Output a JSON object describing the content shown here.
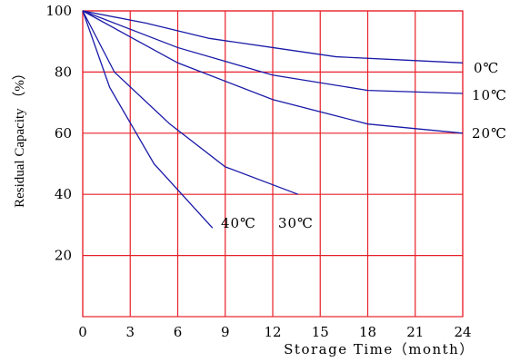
{
  "chart_data": {
    "type": "line",
    "xlabel": "Storage Time（month）",
    "ylabel": "Residual Capacity （%）",
    "xlim": [
      0,
      24
    ],
    "ylim": [
      0,
      100
    ],
    "x_ticks": [
      "0",
      "3",
      "6",
      "9",
      "12",
      "15",
      "18",
      "21",
      "24"
    ],
    "y_ticks": [
      "100",
      "80",
      "60",
      "40",
      "20"
    ],
    "grid": true,
    "grid_color": "#e8202a",
    "line_color": "#1a1aa8",
    "series": [
      {
        "name": "0℃",
        "x": [
          0,
          4,
          8,
          12,
          16,
          20,
          24
        ],
        "y": [
          100,
          96,
          91,
          88,
          85,
          84,
          83
        ]
      },
      {
        "name": "10℃",
        "x": [
          0,
          6,
          12,
          18,
          24
        ],
        "y": [
          100,
          88,
          79,
          74,
          73
        ]
      },
      {
        "name": "20℃",
        "x": [
          0,
          6,
          12,
          18,
          24
        ],
        "y": [
          100,
          83,
          71,
          63,
          60
        ]
      },
      {
        "name": "30℃",
        "x": [
          0,
          2,
          5.5,
          9,
          13.6
        ],
        "y": [
          100,
          80,
          63,
          49,
          40
        ]
      },
      {
        "name": "40℃",
        "x": [
          0,
          1.7,
          4.5,
          8.2
        ],
        "y": [
          100,
          75,
          50,
          29
        ]
      }
    ]
  }
}
